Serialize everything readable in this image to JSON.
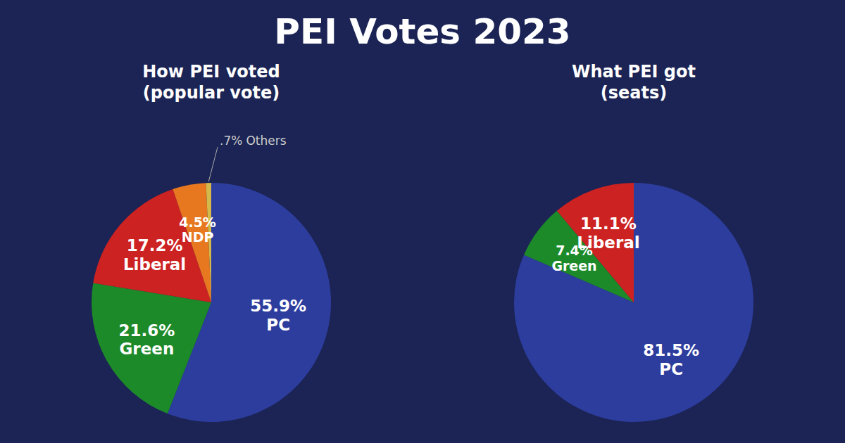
{
  "title": "PEI Votes 2023",
  "chart_data": [
    {
      "type": "pie",
      "title": "How PEI voted\n(popular vote)",
      "categories": [
        "PC",
        "Green",
        "Liberal",
        "NDP",
        "Others"
      ],
      "values": [
        55.9,
        21.6,
        17.2,
        4.5,
        0.7
      ],
      "value_labels": [
        "55.9%",
        "21.6%",
        "17.2%",
        "4.5%",
        ".7%"
      ],
      "colors": [
        "#2d3d9e",
        "#1d8a2a",
        "#cc2222",
        "#e87820",
        "#d4b84a"
      ],
      "data_labels": true
    },
    {
      "type": "pie",
      "title": "What PEI got\n(seats)",
      "categories": [
        "PC",
        "Green",
        "Liberal"
      ],
      "values": [
        81.5,
        7.4,
        11.1
      ],
      "value_labels": [
        "81.5%",
        "7.4%",
        "11.1%"
      ],
      "colors": [
        "#2d3d9e",
        "#1d8a2a",
        "#cc2222"
      ],
      "data_labels": true
    }
  ]
}
